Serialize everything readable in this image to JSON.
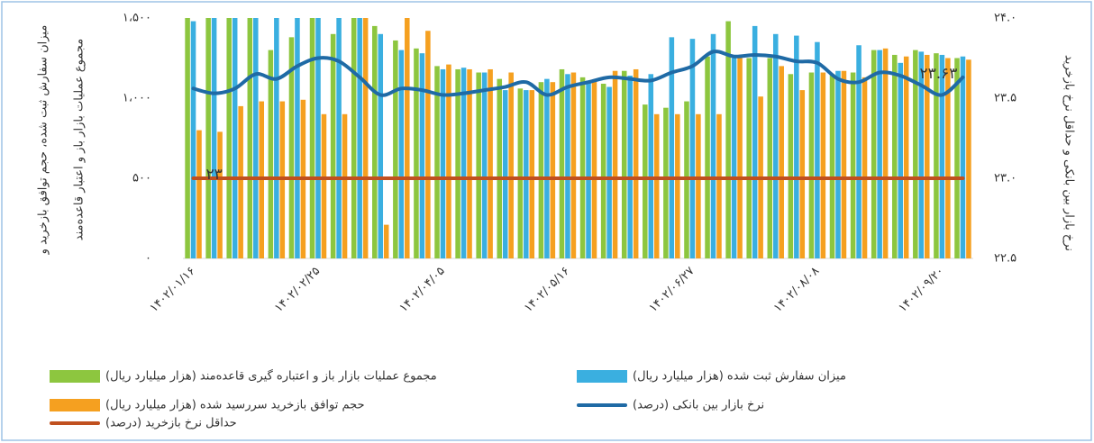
{
  "chart_data": {
    "type": "bar",
    "y_label_lines": [
      "میزان سفارش ثبت شده، حجم توافق بازخرید و",
      "مجموع عملیات بازار باز و اعتبار قاعده‌مند"
    ],
    "y2_label": "نرخ بازار بین بانکی و حداقل نرخ بازخرید",
    "categories": [
      "۱۴۰۲/۰۱/۱۶",
      null,
      null,
      null,
      null,
      null,
      "۱۴۰۲/۰۲/۲۵",
      null,
      null,
      null,
      null,
      null,
      "۱۴۰۲/۰۴/۰۵",
      null,
      null,
      null,
      null,
      null,
      "۱۴۰۲/۰۵/۱۶",
      null,
      null,
      null,
      null,
      null,
      "۱۴۰۲/۰۶/۲۷",
      null,
      null,
      null,
      null,
      null,
      "۱۴۰۲/۰۸/۰۸",
      null,
      null,
      null,
      null,
      null,
      "۱۴۰۲/۰۹/۲۰",
      null
    ],
    "ylim": [
      0,
      1500
    ],
    "yticks": [
      {
        "value": 0,
        "label": "۰"
      },
      {
        "value": 500,
        "label": "۵۰۰"
      },
      {
        "value": 1000,
        "label": "۱،۰۰۰"
      },
      {
        "value": 1500,
        "label": "۱،۵۰۰"
      }
    ],
    "y2lim": [
      22.5,
      24.0
    ],
    "y2ticks": [
      {
        "value": 22.5,
        "label": "۲۲.۵"
      },
      {
        "value": 23.0,
        "label": "۲۳.۰"
      },
      {
        "value": 23.5,
        "label": "۲۳.۵"
      },
      {
        "value": 24.0,
        "label": "۲۴.۰"
      }
    ],
    "series": [
      {
        "name": "مجموع عملیات بازار باز و اعتباره گیری قاعده‌مند (هزار میلیارد ریال)",
        "color": "#8dc63f",
        "type": "bar",
        "values": [
          1500,
          1500,
          1500,
          1500,
          1300,
          1380,
          1500,
          1400,
          1500,
          1450,
          1360,
          1310,
          1200,
          1180,
          1160,
          1120,
          1060,
          1100,
          1180,
          1130,
          1090,
          1170,
          960,
          940,
          980,
          1260,
          1480,
          1250,
          1250,
          1150,
          1160,
          1150,
          1160,
          1300,
          1270,
          1300,
          1280,
          1250
        ]
      },
      {
        "name": "میزان سفارش ثبت شده (هزار میلیارد ریال)",
        "color": "#3aafe0",
        "type": "bar",
        "values": [
          1480,
          1500,
          1500,
          1500,
          1500,
          1500,
          1500,
          1500,
          1500,
          1400,
          1300,
          1280,
          1180,
          1190,
          1160,
          1050,
          1050,
          1120,
          1150,
          1110,
          1070,
          1140,
          1150,
          1380,
          1370,
          1400,
          1250,
          1450,
          1400,
          1390,
          1350,
          1170,
          1330,
          1300,
          1220,
          1290,
          1270,
          1260
        ]
      },
      {
        "name": "حجم توافق بازخرید سررسید شده (هزار میلیارد ریال)",
        "color": "#f5a020",
        "type": "bar",
        "values": [
          800,
          790,
          950,
          980,
          980,
          990,
          900,
          900,
          1500,
          210,
          1500,
          1420,
          1210,
          1180,
          1180,
          1160,
          1050,
          1100,
          1160,
          1110,
          1170,
          1180,
          900,
          900,
          900,
          900,
          1250,
          1010,
          1200,
          1050,
          1160,
          1170,
          1130,
          1310,
          1260,
          1270,
          1250,
          1240
        ]
      },
      {
        "name": "نرخ بازار بین بانکی (درصد)",
        "color": "#1f6aa5",
        "type": "line",
        "axis": "y2",
        "values": [
          23.56,
          23.53,
          23.56,
          23.65,
          23.62,
          23.7,
          23.75,
          23.73,
          23.63,
          23.52,
          23.56,
          23.55,
          23.52,
          23.53,
          23.55,
          23.57,
          23.6,
          23.52,
          23.57,
          23.6,
          23.63,
          23.62,
          23.61,
          23.66,
          23.7,
          23.79,
          23.76,
          23.77,
          23.76,
          23.73,
          23.72,
          23.62,
          23.6,
          23.66,
          23.64,
          23.58,
          23.52,
          23.63
        ],
        "value_labels": [
          null,
          null,
          null,
          null,
          null,
          null,
          null,
          null,
          null,
          null,
          null,
          null,
          null,
          null,
          null,
          null,
          null,
          null,
          null,
          null,
          null,
          null,
          null,
          null,
          null,
          null,
          null,
          null,
          null,
          null,
          null,
          null,
          null,
          null,
          null,
          null,
          null,
          "۲۳.۶۳"
        ]
      },
      {
        "name": "حداقل نرخ بازخرید (درصد)",
        "color": "#c0501f",
        "type": "line",
        "axis": "y2",
        "values": [
          23,
          23,
          23,
          23,
          23,
          23,
          23,
          23,
          23,
          23,
          23,
          23,
          23,
          23,
          23,
          23,
          23,
          23,
          23,
          23,
          23,
          23,
          23,
          23,
          23,
          23,
          23,
          23,
          23,
          23,
          23,
          23,
          23,
          23,
          23,
          23,
          23,
          23
        ],
        "value_labels": [
          "۲۳",
          null,
          null,
          null,
          null,
          null,
          null,
          null,
          null,
          null,
          null,
          null,
          null,
          null,
          null,
          null,
          null,
          null,
          null,
          null,
          null,
          null,
          null,
          null,
          null,
          null,
          null,
          null,
          null,
          null,
          null,
          null,
          null,
          null,
          null,
          null,
          null,
          null
        ]
      }
    ]
  }
}
